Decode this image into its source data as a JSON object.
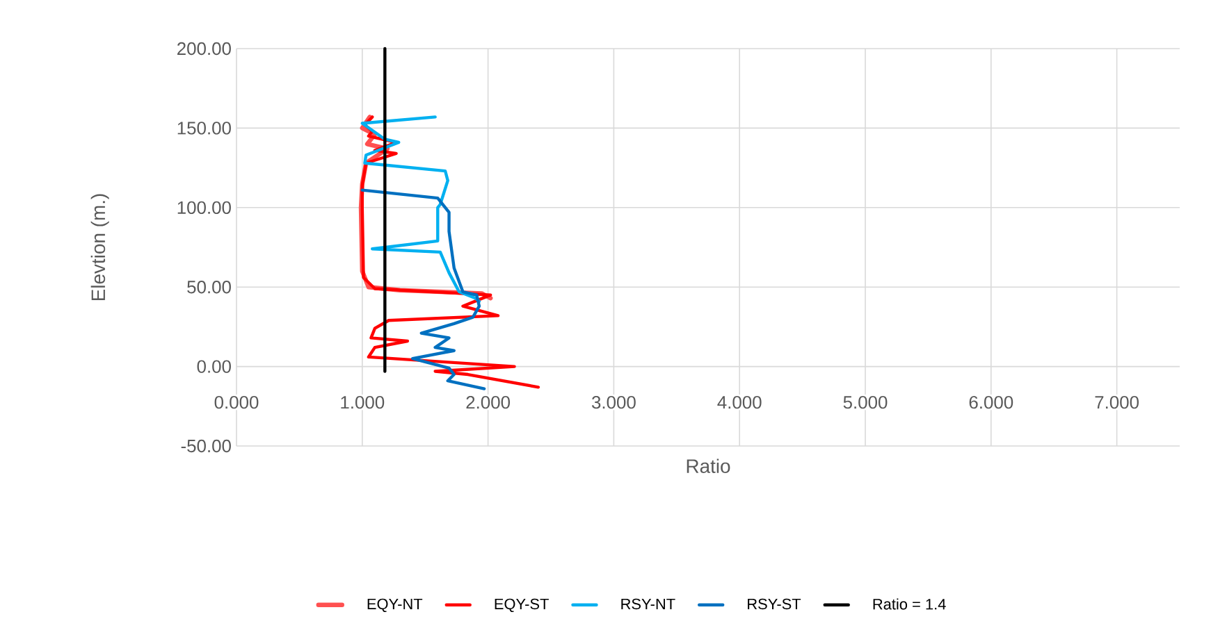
{
  "chart_data": {
    "type": "line",
    "xlabel": "Ratio",
    "ylabel": "Elevtion (m.)",
    "xlim": [
      0,
      7.5
    ],
    "ylim": [
      -50,
      200
    ],
    "xticks": [
      {
        "value": 0,
        "label": "0.000"
      },
      {
        "value": 1,
        "label": "1.000"
      },
      {
        "value": 2,
        "label": "2.000"
      },
      {
        "value": 3,
        "label": "3.000"
      },
      {
        "value": 4,
        "label": "4.000"
      },
      {
        "value": 5,
        "label": "5.000"
      },
      {
        "value": 6,
        "label": "6.000"
      },
      {
        "value": 7,
        "label": "7.000"
      }
    ],
    "yticks": [
      {
        "value": -50,
        "label": "-50.00"
      },
      {
        "value": 0,
        "label": "0.00"
      },
      {
        "value": 50,
        "label": "50.00"
      },
      {
        "value": 100,
        "label": "100.00"
      },
      {
        "value": 150,
        "label": "150.00"
      },
      {
        "value": 200,
        "label": "200.00"
      }
    ],
    "grid": true,
    "legend": "bottom",
    "series": [
      {
        "name": "EQY-NT",
        "color": "#ff5050",
        "x": [
          1.06,
          1.0,
          1.1,
          1.04,
          1.2,
          1.03,
          1.0,
          0.99,
          1.0,
          1.05,
          1.3,
          1.95,
          2.02
        ],
        "values": [
          157,
          150,
          146,
          140,
          137,
          128,
          115,
          100,
          60,
          50,
          48,
          46,
          43
        ]
      },
      {
        "name": "EQY-ST",
        "color": "#ff0000",
        "x": [
          1.08,
          1.02,
          1.08,
          1.05,
          1.27,
          1.1,
          1.27,
          1.03,
          1.0,
          1.0,
          1.01,
          1.1,
          2.02,
          1.8,
          2.08,
          1.21,
          1.1,
          1.07,
          1.36,
          1.1,
          1.05,
          2.21,
          1.58,
          1.84,
          2.4
        ],
        "values": [
          157,
          152,
          148,
          145,
          141,
          136,
          134,
          128,
          114,
          100,
          56,
          49,
          45,
          38,
          32,
          29,
          24,
          18,
          16,
          12,
          6,
          0,
          -3,
          -5,
          -13
        ]
      },
      {
        "name": "RSY-NT",
        "color": "#00b0f0",
        "x": [
          1.58,
          1.0,
          1.18,
          1.29,
          1.03,
          1.02,
          1.66,
          1.68,
          1.62,
          1.6,
          1.6,
          1.08,
          1.62,
          1.69,
          1.77,
          1.9,
          1.93
        ],
        "values": [
          157,
          153,
          143,
          141,
          133,
          128,
          123,
          117,
          102,
          100,
          79,
          74,
          72,
          59,
          47,
          43,
          41
        ]
      },
      {
        "name": "RSY-ST",
        "color": "#0070c0",
        "x": [
          1.0,
          1.6,
          1.69,
          1.69,
          1.73,
          1.8,
          1.91,
          1.93,
          1.88,
          1.73,
          1.47,
          1.69,
          1.58,
          1.73,
          1.4,
          1.69,
          1.73,
          1.68,
          1.97
        ],
        "values": [
          111,
          106,
          97,
          85,
          62,
          47,
          45,
          38,
          31,
          27,
          21,
          18,
          12,
          10,
          5,
          -1,
          -5,
          -9,
          -14
        ]
      },
      {
        "name": "Ratio = 1.4",
        "color": "#000000",
        "x": [
          1.18,
          1.18
        ],
        "values": [
          -3,
          200
        ]
      }
    ]
  }
}
